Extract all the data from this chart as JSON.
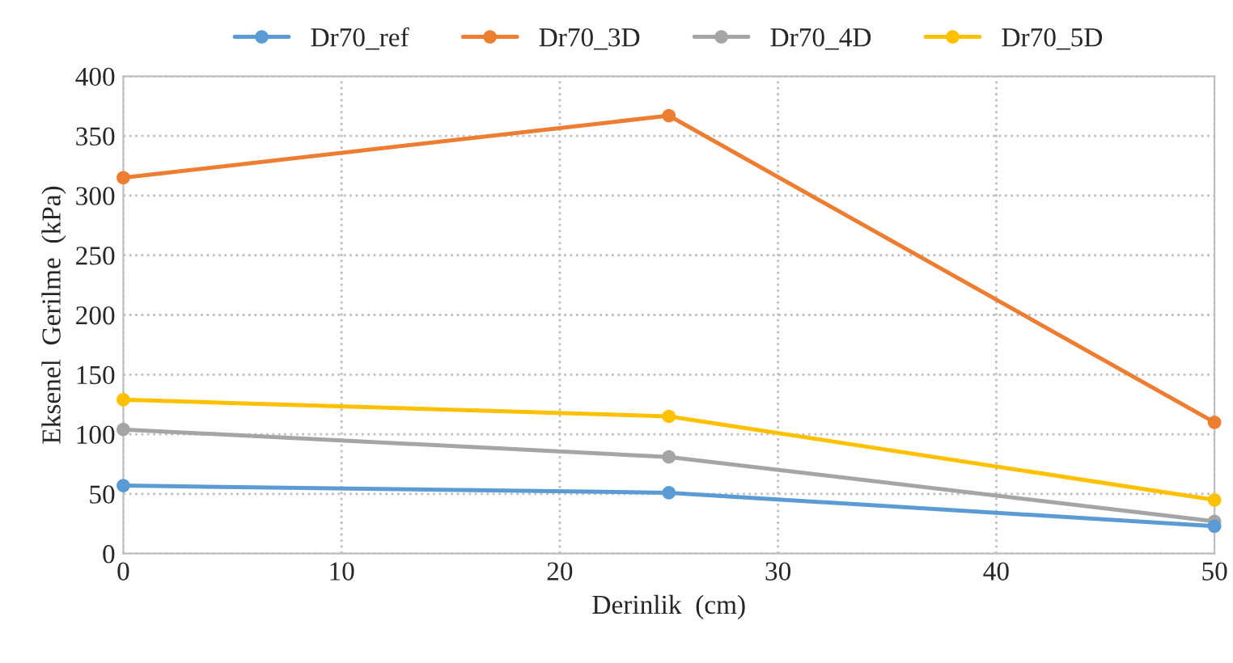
{
  "chart_data": {
    "type": "line",
    "xlabel": "Derinlik  (cm)",
    "ylabel": "Eksenel  Gerilme  (kPa)",
    "x": [
      0,
      25,
      50
    ],
    "series": [
      {
        "name": "Dr70_ref",
        "color": "#5b9bd5",
        "values": [
          57,
          51,
          23
        ]
      },
      {
        "name": "Dr70_3D",
        "color": "#ed7d31",
        "values": [
          315,
          367,
          110
        ]
      },
      {
        "name": "Dr70_4D",
        "color": "#a5a5a5",
        "values": [
          104,
          81,
          27
        ]
      },
      {
        "name": "Dr70_5D",
        "color": "#ffc000",
        "values": [
          129,
          115,
          45
        ]
      }
    ],
    "xlim": [
      0,
      50
    ],
    "xticks": [
      0,
      10,
      20,
      30,
      40,
      50
    ],
    "ylim": [
      0,
      400
    ],
    "yticks": [
      0,
      50,
      100,
      150,
      200,
      250,
      300,
      350,
      400
    ],
    "grid": true,
    "legend": "top",
    "marker": "circle",
    "line_style": "solid"
  }
}
